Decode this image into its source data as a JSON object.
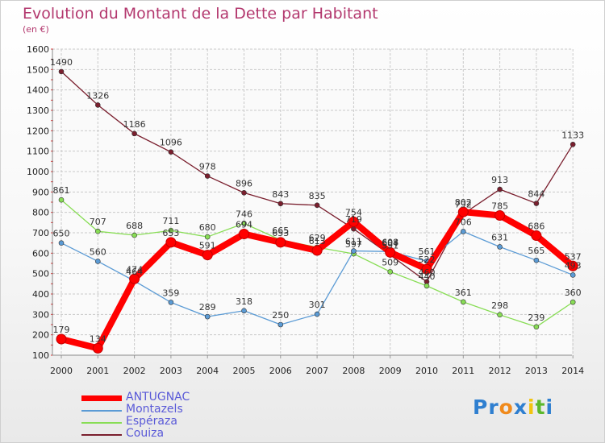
{
  "header": {
    "title": "Evolution du Montant de la Dette par Habitant",
    "unit": "(en €)"
  },
  "chart_data": {
    "type": "line",
    "title": "Evolution du Montant de la Dette par Habitant",
    "subtitle": "(en €)",
    "xlabel": "",
    "ylabel": "",
    "categories": [
      "2000",
      "2001",
      "2002",
      "2003",
      "2004",
      "2005",
      "2006",
      "2007",
      "2008",
      "2009",
      "2010",
      "2011",
      "2012",
      "2013",
      "2014"
    ],
    "ylim": [
      100,
      1600
    ],
    "yticks": [
      100,
      200,
      300,
      400,
      500,
      600,
      700,
      800,
      900,
      1000,
      1100,
      1200,
      1300,
      1400,
      1500,
      1600
    ],
    "grid": true,
    "legend": "bottom-left",
    "series": [
      {
        "name": "ANTUGNAC",
        "color": "#ff0000",
        "values": [
          179,
          134,
          474,
          653,
          591,
          694,
          653,
          613,
          754,
          604,
          522,
          802,
          785,
          686,
          537
        ]
      },
      {
        "name": "Montazels",
        "color": "#5b9bd5",
        "values": [
          650,
          560,
          464,
          359,
          289,
          318,
          250,
          301,
          611,
          608,
          561,
          706,
          631,
          565,
          493
        ]
      },
      {
        "name": "Espéraza",
        "color": "#88dd55",
        "values": [
          861,
          707,
          688,
          711,
          680,
          746,
          665,
          629,
          597,
          509,
          440,
          361,
          298,
          239,
          360
        ]
      },
      {
        "name": "Couiza",
        "color": "#7a1f2e",
        "values": [
          1490,
          1326,
          1186,
          1096,
          978,
          896,
          843,
          835,
          719,
          591,
          460,
          792,
          913,
          844,
          1133
        ]
      }
    ]
  },
  "logo": {
    "letters": [
      "P",
      "r",
      "o",
      "x",
      "i",
      "t",
      "i"
    ],
    "colors": [
      "#2f7fd0",
      "#2f7fd0",
      "#f08a1c",
      "#2f7fd0",
      "#f2c40f",
      "#5cb82c",
      "#2f7fd0"
    ]
  }
}
